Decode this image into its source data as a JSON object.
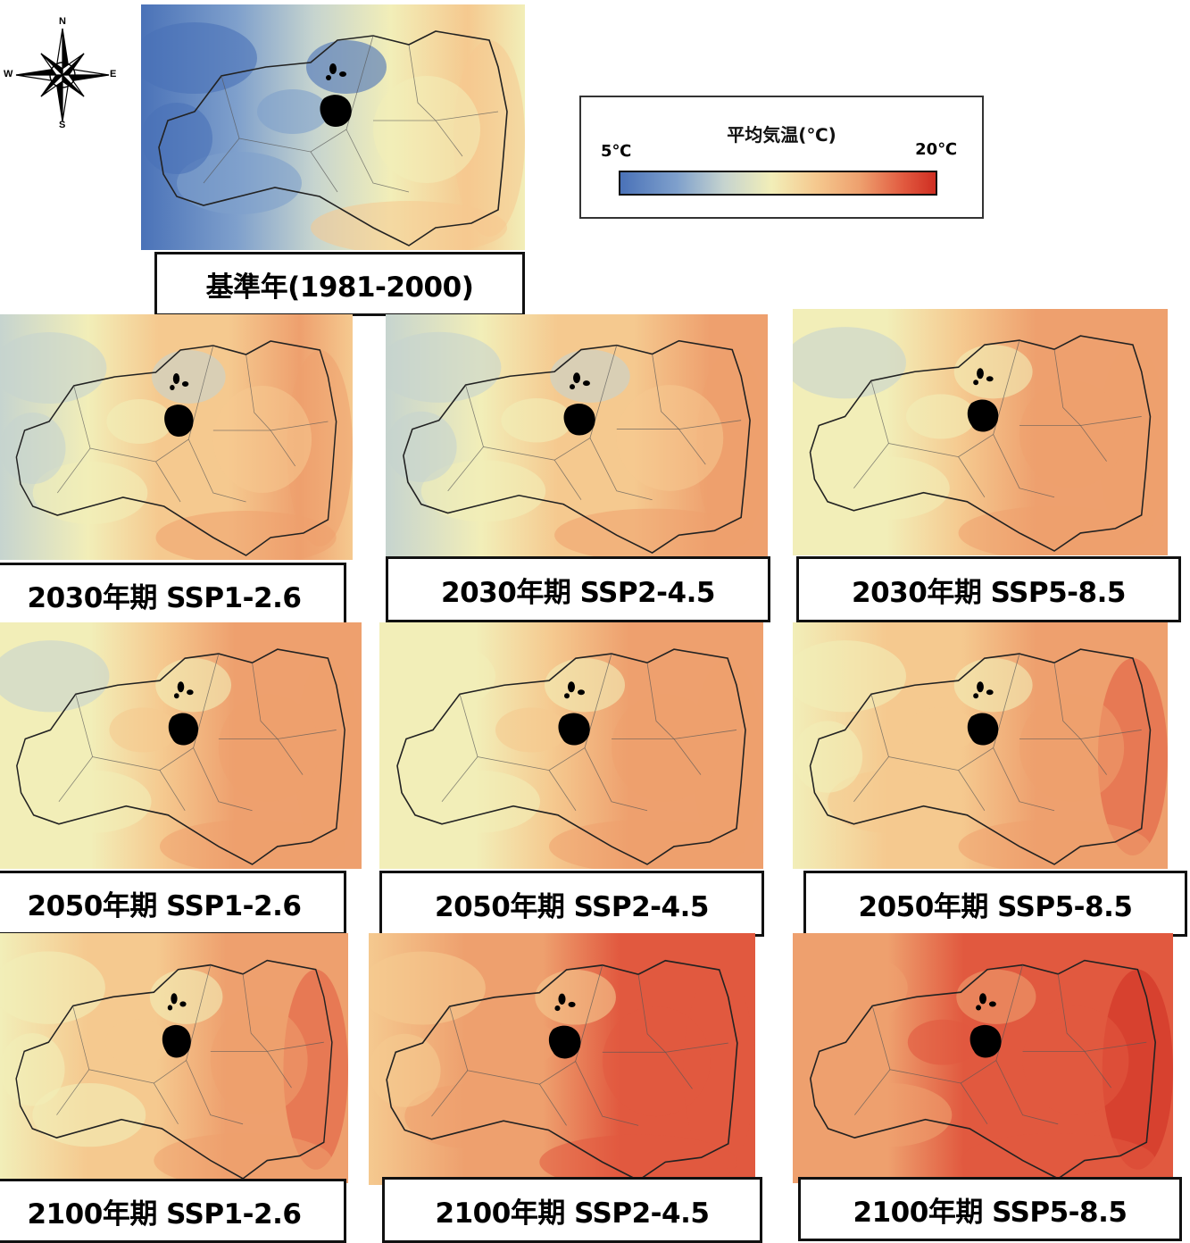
{
  "compass": {
    "n": "N",
    "s": "S",
    "e": "E",
    "w": "W"
  },
  "legend": {
    "title": "平均気温(℃)",
    "min_label": "5℃",
    "max_label": "20℃",
    "colors": [
      "#4a72b8",
      "#c6d4cf",
      "#f2eeb8",
      "#eea06e",
      "#cf2e22"
    ]
  },
  "baseline": {
    "label": "基準年(1981-2000)"
  },
  "scenarios": [
    {
      "label": "2030年期 SSP1-2.6"
    },
    {
      "label": "2030年期 SSP2-4.5"
    },
    {
      "label": "2030年期 SSP5-8.5"
    },
    {
      "label": "2050年期 SSP1-2.6"
    },
    {
      "label": "2050年期 SSP2-4.5"
    },
    {
      "label": "2050年期 SSP5-8.5"
    },
    {
      "label": "2100年期 SSP1-2.6"
    },
    {
      "label": "2100年期 SSP2-4.5"
    },
    {
      "label": "2100年期 SSP5-8.5"
    }
  ]
}
